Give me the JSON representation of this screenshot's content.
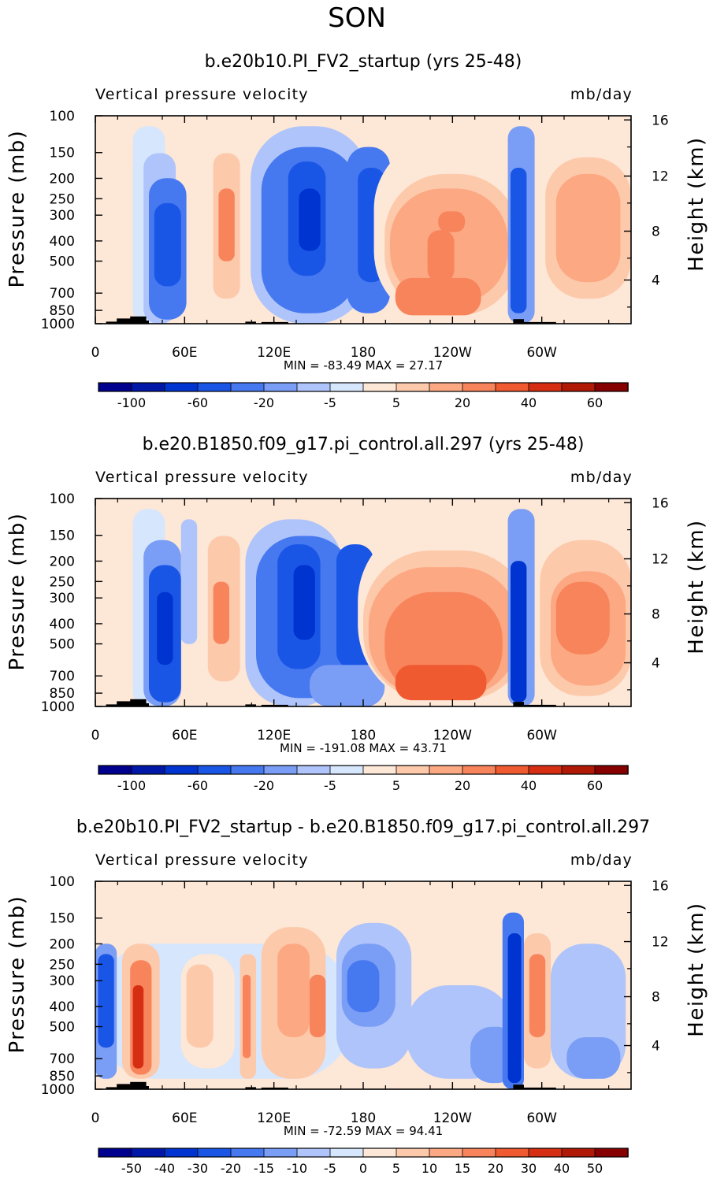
{
  "title": "SON",
  "chart_data": [
    {
      "type": "heatmap",
      "title": "b.e20b10.PI_FV2_startup (yrs 25-48)",
      "left_label": "Vertical pressure velocity",
      "right_label": "mb/day",
      "ylabel": "Pressure (mb)",
      "y2label": "Height (km)",
      "x_ticks": [
        "0",
        "60E",
        "120E",
        "180",
        "120W",
        "60W"
      ],
      "y_ticks": [
        "100",
        "150",
        "200",
        "250",
        "300",
        "400",
        "500",
        "700",
        "850",
        "1000"
      ],
      "y2_ticks": [
        "16",
        "12",
        "8",
        "4"
      ],
      "min_max": "MIN = -83.49   MAX = 27.17",
      "colorbar": {
        "colors": [
          "#00008f",
          "#0018a8",
          "#0034d0",
          "#1a56e6",
          "#4678f0",
          "#7a9df5",
          "#aec4fa",
          "#d6e6fd",
          "#fde7d6",
          "#fdc9ab",
          "#fca983",
          "#f8845c",
          "#ef5a30",
          "#d62e13",
          "#b01906",
          "#870000"
        ],
        "labels": [
          "-100",
          "-60",
          "-20",
          "-5",
          "5",
          "20",
          "40",
          "60"
        ]
      }
    },
    {
      "type": "heatmap",
      "title": "b.e20.B1850.f09_g17.pi_control.all.297 (yrs 25-48)",
      "left_label": "Vertical pressure velocity",
      "right_label": "mb/day",
      "ylabel": "Pressure (mb)",
      "y2label": "Height (km)",
      "x_ticks": [
        "0",
        "60E",
        "120E",
        "180",
        "120W",
        "60W"
      ],
      "y_ticks": [
        "100",
        "150",
        "200",
        "250",
        "300",
        "400",
        "500",
        "700",
        "850",
        "1000"
      ],
      "y2_ticks": [
        "16",
        "12",
        "8",
        "4"
      ],
      "min_max": "MIN = -191.08   MAX = 43.71",
      "colorbar": {
        "colors": [
          "#00008f",
          "#0018a8",
          "#0034d0",
          "#1a56e6",
          "#4678f0",
          "#7a9df5",
          "#aec4fa",
          "#d6e6fd",
          "#fde7d6",
          "#fdc9ab",
          "#fca983",
          "#f8845c",
          "#ef5a30",
          "#d62e13",
          "#b01906",
          "#870000"
        ],
        "labels": [
          "-100",
          "-60",
          "-20",
          "-5",
          "5",
          "20",
          "40",
          "60"
        ]
      }
    },
    {
      "type": "heatmap",
      "title": "b.e20b10.PI_FV2_startup - b.e20.B1850.f09_g17.pi_control.all.297",
      "left_label": "Vertical pressure velocity",
      "right_label": "mb/day",
      "ylabel": "Pressure (mb)",
      "y2label": "Height (km)",
      "x_ticks": [
        "0",
        "60E",
        "120E",
        "180",
        "120W",
        "60W"
      ],
      "y_ticks": [
        "100",
        "150",
        "200",
        "250",
        "300",
        "400",
        "500",
        "700",
        "850",
        "1000"
      ],
      "y2_ticks": [
        "16",
        "12",
        "8",
        "4"
      ],
      "min_max": "MIN = -72.59   MAX = 94.41",
      "colorbar": {
        "colors": [
          "#00008f",
          "#0018a8",
          "#0034d0",
          "#1a56e6",
          "#4678f0",
          "#7a9df5",
          "#aec4fa",
          "#d6e6fd",
          "#fde7d6",
          "#fdc9ab",
          "#fca983",
          "#f8845c",
          "#ef5a30",
          "#d62e13",
          "#b01906",
          "#870000"
        ],
        "labels": [
          "-50",
          "-40",
          "-30",
          "-20",
          "-15",
          "-10",
          "-5",
          "0",
          "5",
          "10",
          "15",
          "20",
          "30",
          "40",
          "50"
        ]
      }
    }
  ]
}
